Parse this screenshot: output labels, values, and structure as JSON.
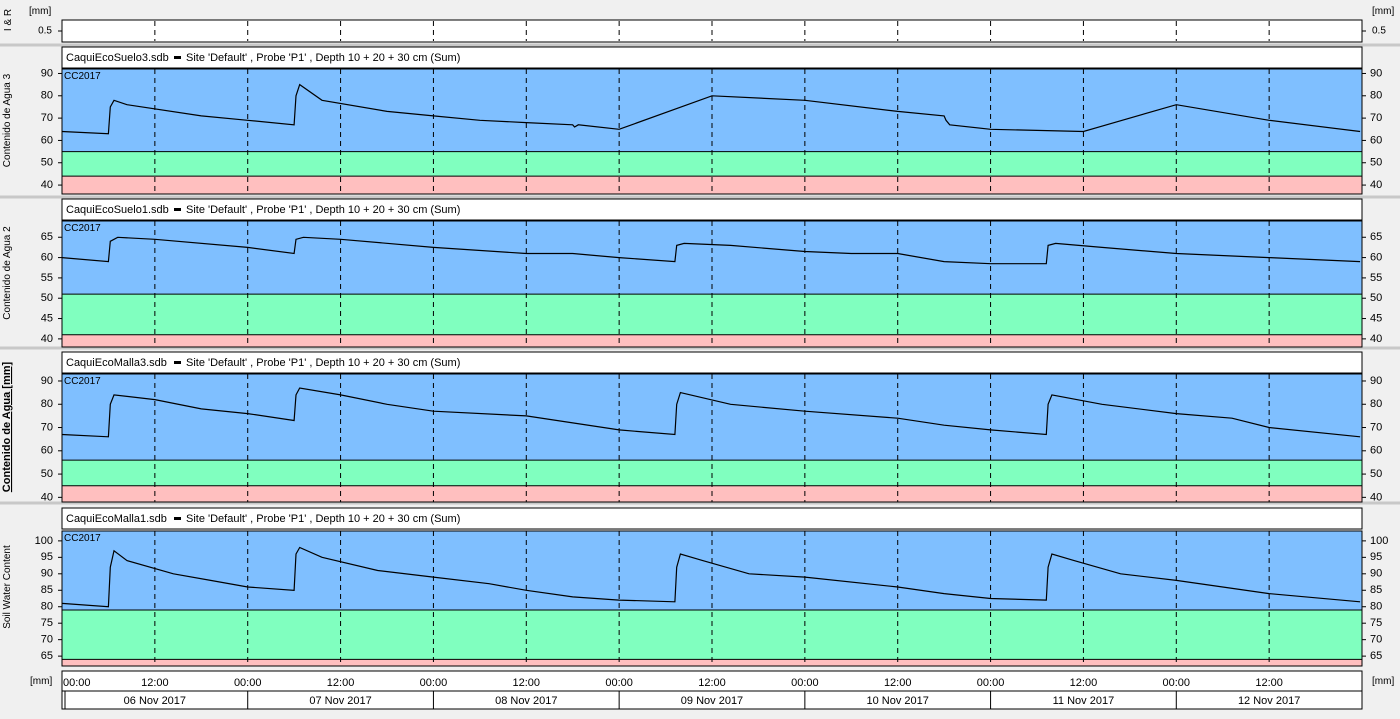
{
  "top_panel": {
    "ylabel": "I & R",
    "unit": "[mm]",
    "ticks": [
      0.5
    ]
  },
  "date_axis": {
    "unit": "[mm]",
    "time_labels": [
      "00:00",
      "12:00",
      "00:00",
      "12:00",
      "00:00",
      "12:00",
      "00:00",
      "12:00",
      "00:00",
      "12:00",
      "00:00",
      "12:00",
      "00:00",
      "12:00"
    ],
    "date_labels": [
      "06 Nov 2017",
      "07 Nov 2017",
      "08 Nov 2017",
      "09 Nov 2017",
      "10 Nov 2017",
      "11 Nov 2017",
      "12 Nov 2017"
    ]
  },
  "colors": {
    "band_top": "#7fbfff",
    "band_mid": "#80ffbf",
    "band_low": "#ffbfbf",
    "line": "#000000",
    "grid": "#000000",
    "background": "#f0f0f0"
  },
  "chart_data": [
    {
      "type": "line",
      "file": "CaquiEcoSuelo3.sdb",
      "legend": "Site 'Default' , Probe 'P1' , Depth 10 + 20 + 30 cm (Sum)",
      "band_label": "CC2017",
      "ylabel": "Contenido de Agua 3",
      "ylim": [
        36,
        92
      ],
      "yticks": [
        40,
        50,
        60,
        70,
        80,
        90
      ],
      "bands": {
        "mid_top": 55,
        "low_top": 44
      },
      "x": [
        0,
        0.25,
        0.26,
        0.28,
        0.35,
        0.75,
        1.0,
        1.25,
        1.26,
        1.28,
        1.4,
        1.75,
        2.0,
        2.25,
        2.5,
        2.75,
        2.76,
        2.78,
        3.0,
        3.5,
        4.0,
        4.5,
        4.75,
        4.76,
        4.78,
        5.0,
        5.5,
        6.0,
        6.5,
        6.99
      ],
      "y": [
        64,
        63,
        75,
        78,
        76,
        71,
        69,
        67,
        80,
        85,
        78,
        73,
        71,
        69,
        68,
        67,
        66,
        67,
        65,
        80,
        78,
        73,
        71,
        69,
        67,
        65,
        64,
        76,
        69,
        64
      ]
    },
    {
      "type": "line",
      "file": "CaquiEcoSuelo1.sdb",
      "legend": "Site 'Default' , Probe 'P1' , Depth 10 + 20 + 30 cm (Sum)",
      "band_label": "CC2017",
      "ylabel": "Contenido de Agua 2",
      "ylim": [
        38,
        69
      ],
      "yticks": [
        40,
        45,
        50,
        55,
        60,
        65
      ],
      "bands": {
        "mid_top": 51,
        "low_top": 41
      },
      "x": [
        0,
        0.25,
        0.26,
        0.3,
        0.5,
        1.0,
        1.25,
        1.26,
        1.3,
        1.5,
        2.0,
        2.5,
        2.75,
        3.0,
        3.3,
        3.31,
        3.35,
        3.6,
        4.0,
        4.25,
        4.5,
        4.75,
        5.0,
        5.3,
        5.31,
        5.35,
        5.6,
        6.0,
        6.5,
        6.99
      ],
      "y": [
        60,
        59,
        64,
        65,
        64.5,
        62.5,
        61,
        64.5,
        65,
        64.5,
        62.5,
        61,
        61,
        60,
        59,
        63,
        63.5,
        63,
        61.5,
        61,
        61,
        59,
        58.5,
        58.5,
        63,
        63.5,
        62.5,
        61,
        60,
        59
      ]
    },
    {
      "type": "line",
      "file": "CaquiEcoMalla3.sdb",
      "legend": "Site 'Default' , Probe 'P1' , Depth 10 + 20 + 30 cm (Sum)",
      "band_label": "CC2017",
      "ylabel": "Contenido de Agua [mm]",
      "ylim": [
        38,
        93
      ],
      "yticks": [
        40,
        50,
        60,
        70,
        80,
        90
      ],
      "bands": {
        "mid_top": 56,
        "low_top": 45
      },
      "x": [
        0,
        0.25,
        0.26,
        0.28,
        0.5,
        0.75,
        1.0,
        1.25,
        1.26,
        1.28,
        1.5,
        1.75,
        2.0,
        2.5,
        2.75,
        3.0,
        3.3,
        3.31,
        3.33,
        3.6,
        4.0,
        4.5,
        4.75,
        5.0,
        5.3,
        5.31,
        5.33,
        5.6,
        6.0,
        6.3,
        6.5,
        6.99
      ],
      "y": [
        67,
        66,
        80,
        84,
        82,
        78,
        76,
        73,
        84,
        87,
        84,
        80,
        77,
        75,
        72,
        69,
        67,
        80,
        85,
        80,
        77,
        74,
        71,
        69,
        67,
        80,
        84,
        80,
        76,
        74,
        70,
        66
      ]
    },
    {
      "type": "line",
      "file": "CaquiEcoMalla1.sdb",
      "legend": "Site 'Default' , Probe 'P1' , Depth 10 + 20 + 30 cm (Sum)",
      "band_label": "CC2017",
      "ylabel": "Soil Water Content",
      "ylim": [
        62,
        103
      ],
      "yticks": [
        65,
        70,
        75,
        80,
        85,
        90,
        95,
        100
      ],
      "bands": {
        "mid_top": 79,
        "low_top": 64
      },
      "x": [
        0,
        0.25,
        0.26,
        0.28,
        0.35,
        0.6,
        0.8,
        1.0,
        1.25,
        1.26,
        1.28,
        1.4,
        1.7,
        2.0,
        2.3,
        2.5,
        2.75,
        3.0,
        3.3,
        3.31,
        3.33,
        3.45,
        3.7,
        4.0,
        4.5,
        4.75,
        5.0,
        5.3,
        5.31,
        5.33,
        5.45,
        5.7,
        6.0,
        6.5,
        6.99
      ],
      "y": [
        81,
        80,
        92,
        97,
        94,
        90,
        88,
        86,
        85,
        96,
        98,
        95,
        91,
        89,
        87,
        85,
        83,
        82,
        81.5,
        92,
        96,
        94,
        90,
        89,
        86,
        84,
        82.5,
        82,
        92,
        96,
        94,
        90,
        88,
        84,
        81.5
      ]
    }
  ]
}
